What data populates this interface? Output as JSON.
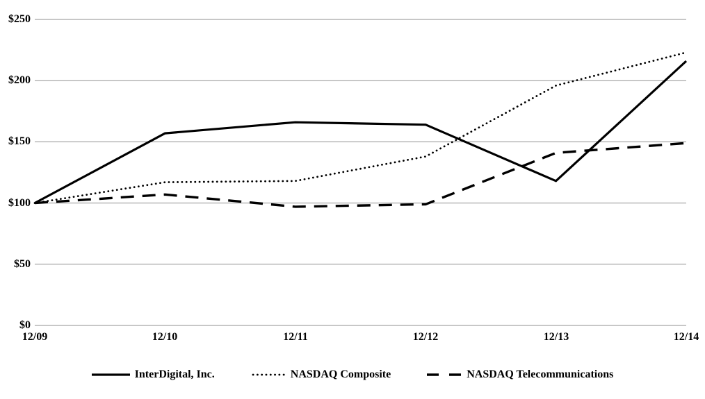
{
  "chart_data": {
    "type": "line",
    "title": "",
    "x": [
      "12/09",
      "12/10",
      "12/11",
      "12/12",
      "12/13",
      "12/14"
    ],
    "y_tick_labels": [
      "$250",
      "$200",
      "$150",
      "$100",
      "$50",
      "$0"
    ],
    "y_tick_values": [
      250,
      200,
      150,
      100,
      50,
      0
    ],
    "ylim": [
      0,
      250
    ],
    "grid": "horizontal-only",
    "legend_position": "bottom-centered",
    "colors": {
      "line": "#000000",
      "gridline": "#8f8f8f",
      "text": "#000000",
      "background": "#ffffff"
    },
    "series": [
      {
        "name": "InterDigital, Inc.",
        "style": "solid",
        "values": [
          100,
          157,
          166,
          164,
          118,
          216
        ]
      },
      {
        "name": "NASDAQ Composite",
        "style": "dotted",
        "values": [
          100,
          117,
          118,
          138,
          196,
          223
        ]
      },
      {
        "name": "NASDAQ Telecommunications",
        "style": "dashed",
        "values": [
          100,
          107,
          97,
          99,
          141,
          149
        ]
      }
    ]
  }
}
